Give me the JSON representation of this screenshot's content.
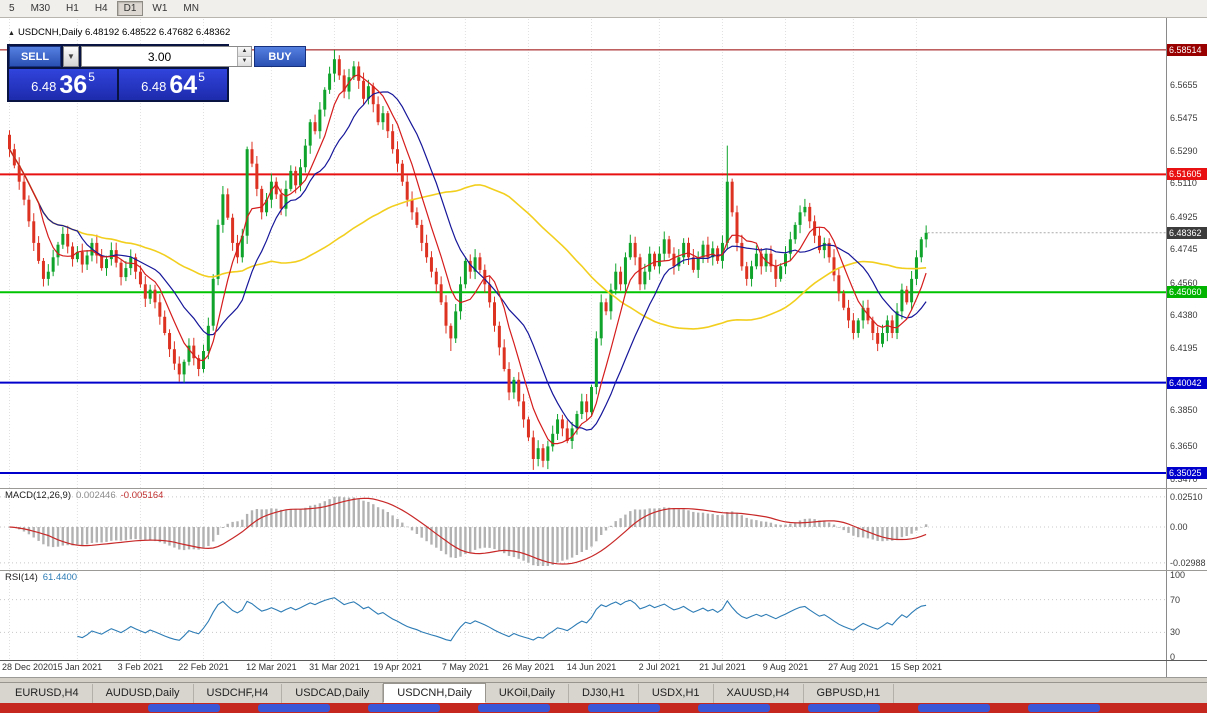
{
  "toolbar": {
    "timeframes": [
      {
        "label": "5",
        "active": false
      },
      {
        "label": "M30",
        "active": false
      },
      {
        "label": "H1",
        "active": false
      },
      {
        "label": "H4",
        "active": false
      },
      {
        "label": "D1",
        "active": true
      },
      {
        "label": "W1",
        "active": false
      },
      {
        "label": "MN",
        "active": false
      }
    ]
  },
  "chart_header": {
    "collapse_icon": "▲",
    "text": "USDCNH,Daily 6.48192 6.48522 6.47682 6.48362"
  },
  "trade_panel": {
    "sell_label": "SELL",
    "buy_label": "BUY",
    "volume": "3.00",
    "sell_price": {
      "prefix": "6.48",
      "big": "36",
      "sup": "5"
    },
    "buy_price": {
      "prefix": "6.48",
      "big": "64",
      "sup": "5"
    }
  },
  "price_axis": {
    "labels": [
      {
        "text": "6.5655",
        "value": 6.5655
      },
      {
        "text": "6.5475",
        "value": 6.5475
      },
      {
        "text": "6.5290",
        "value": 6.529
      },
      {
        "text": "6.5110",
        "value": 6.511
      },
      {
        "text": "6.4925",
        "value": 6.4925
      },
      {
        "text": "6.4745",
        "value": 6.4745
      },
      {
        "text": "6.4560",
        "value": 6.456
      },
      {
        "text": "6.4380",
        "value": 6.438
      },
      {
        "text": "6.4195",
        "value": 6.4195
      },
      {
        "text": "6.3850",
        "value": 6.385
      },
      {
        "text": "6.3650",
        "value": 6.365
      },
      {
        "text": "6.3470",
        "value": 6.347
      }
    ],
    "badges": [
      {
        "text": "6.58514",
        "value": 6.58514,
        "color": "#990000"
      },
      {
        "text": "6.51605",
        "value": 6.51605,
        "color": "#e81010"
      },
      {
        "text": "6.48362",
        "value": 6.48362,
        "color": "#3c3c3c"
      },
      {
        "text": "6.45060",
        "value": 6.4506,
        "color": "#00b400"
      },
      {
        "text": "6.40042",
        "value": 6.40042,
        "color": "#0000cc"
      },
      {
        "text": "6.35025",
        "value": 6.35025,
        "color": "#0000cc"
      }
    ]
  },
  "macd_panel": {
    "label": "MACD(12,26,9)",
    "value_main": "0.002446",
    "value_signal": "-0.005164",
    "axis": [
      {
        "text": "0.02510",
        "value": 0.0251
      },
      {
        "text": "0.00",
        "value": 0
      },
      {
        "text": "-0.02988",
        "value": -0.02988
      }
    ]
  },
  "rsi_panel": {
    "label": "RSI(14)",
    "value": "61.4400",
    "axis": [
      {
        "text": "100",
        "value": 100
      },
      {
        "text": "70",
        "value": 70
      },
      {
        "text": "30",
        "value": 30
      },
      {
        "text": "0",
        "value": 0
      }
    ],
    "levels": [
      70,
      30
    ]
  },
  "time_axis": {
    "dates": [
      {
        "label": "28 Dec 2020",
        "index": 0
      },
      {
        "label": "15 Jan 2021",
        "index": 14
      },
      {
        "label": "3 Feb 2021",
        "index": 27
      },
      {
        "label": "22 Feb 2021",
        "index": 40
      },
      {
        "label": "12 Mar 2021",
        "index": 54
      },
      {
        "label": "31 Mar 2021",
        "index": 67
      },
      {
        "label": "19 Apr 2021",
        "index": 80
      },
      {
        "label": "7 May 2021",
        "index": 94
      },
      {
        "label": "26 May 2021",
        "index": 107
      },
      {
        "label": "14 Jun 2021",
        "index": 120
      },
      {
        "label": "2 Jul 2021",
        "index": 134
      },
      {
        "label": "21 Jul 2021",
        "index": 147
      },
      {
        "label": "9 Aug 2021",
        "index": 160
      },
      {
        "label": "27 Aug 2021",
        "index": 174
      },
      {
        "label": "15 Sep 2021",
        "index": 187
      }
    ]
  },
  "tabs": [
    {
      "label": "EURUSD,H4",
      "active": false
    },
    {
      "label": "AUDUSD,Daily",
      "active": false
    },
    {
      "label": "USDCHF,H4",
      "active": false
    },
    {
      "label": "USDCAD,Daily",
      "active": false
    },
    {
      "label": "USDCNH,Daily",
      "active": true
    },
    {
      "label": "UKOil,Daily",
      "active": false
    },
    {
      "label": "DJ30,H1",
      "active": false
    },
    {
      "label": "USDX,H1",
      "active": false
    },
    {
      "label": "XAUUSD,H4",
      "active": false
    },
    {
      "label": "GBPUSD,H1",
      "active": false
    }
  ],
  "colors": {
    "up": "#0fa32b",
    "down": "#dd3222",
    "ma_fast": "#d51c1c",
    "ma_mid": "#16169a",
    "ma_slow": "#f2cf1f",
    "macd_hist": "#b2b2b2",
    "macd_signal": "#c82828",
    "rsi_line": "#2d7cb5",
    "grid": "#e0e0e0"
  },
  "chart_data": {
    "type": "candlestick",
    "symbol": "USDCNH",
    "timeframe": "Daily",
    "ohlc": {
      "open": 6.48192,
      "high": 6.48522,
      "low": 6.47682,
      "close": 6.48362
    },
    "bid": 6.48362,
    "first_open": 6.538,
    "closes": [
      6.53,
      6.521,
      6.512,
      6.502,
      6.49,
      6.478,
      6.468,
      6.458,
      6.462,
      6.47,
      6.477,
      6.483,
      6.476,
      6.469,
      6.473,
      6.466,
      6.471,
      6.478,
      6.471,
      6.464,
      6.469,
      6.474,
      6.467,
      6.459,
      6.464,
      6.47,
      6.462,
      6.455,
      6.447,
      6.452,
      6.445,
      6.437,
      6.428,
      6.419,
      6.411,
      6.405,
      6.412,
      6.421,
      6.414,
      6.408,
      6.418,
      6.432,
      6.458,
      6.488,
      6.505,
      6.492,
      6.478,
      6.47,
      6.482,
      6.53,
      6.522,
      6.508,
      6.495,
      6.502,
      6.512,
      6.505,
      6.497,
      6.508,
      6.518,
      6.51,
      6.52,
      6.532,
      6.545,
      6.54,
      6.552,
      6.563,
      6.572,
      6.58,
      6.571,
      6.562,
      6.57,
      6.576,
      6.568,
      6.558,
      6.565,
      6.555,
      6.545,
      6.55,
      6.54,
      6.53,
      6.522,
      6.512,
      6.502,
      6.495,
      6.488,
      6.478,
      6.47,
      6.462,
      6.455,
      6.445,
      6.432,
      6.425,
      6.44,
      6.455,
      6.468,
      6.462,
      6.47,
      6.463,
      6.455,
      6.445,
      6.432,
      6.42,
      6.408,
      6.395,
      6.402,
      6.39,
      6.38,
      6.37,
      6.358,
      6.364,
      6.357,
      6.365,
      6.372,
      6.38,
      6.375,
      6.368,
      6.375,
      6.383,
      6.39,
      6.384,
      6.398,
      6.425,
      6.445,
      6.44,
      6.452,
      6.462,
      6.455,
      6.47,
      6.478,
      6.47,
      6.455,
      6.462,
      6.472,
      6.465,
      6.472,
      6.48,
      6.472,
      6.465,
      6.47,
      6.478,
      6.47,
      6.463,
      6.47,
      6.477,
      6.47,
      6.475,
      6.468,
      6.478,
      6.512,
      6.495,
      6.478,
      6.465,
      6.458,
      6.465,
      6.472,
      6.465,
      6.472,
      6.465,
      6.458,
      6.465,
      6.472,
      6.48,
      6.488,
      6.495,
      6.498,
      6.49,
      6.482,
      6.474,
      6.478,
      6.47,
      6.46,
      6.45,
      6.442,
      6.435,
      6.428,
      6.435,
      6.442,
      6.435,
      6.428,
      6.422,
      6.428,
      6.435,
      6.428,
      6.44,
      6.452,
      6.445,
      6.458,
      6.47,
      6.48,
      6.4836
    ],
    "wick_overrides": {
      "35": {
        "low": 6.401
      },
      "67": {
        "high": 6.5851
      },
      "91": {
        "low": 6.418
      },
      "108": {
        "low": 6.352
      },
      "110": {
        "low": 6.3535
      },
      "148": {
        "high": 6.532
      }
    },
    "levels": [
      {
        "price": 6.58514,
        "color": "#990000",
        "width": 1
      },
      {
        "price": 6.51605,
        "color": "#e81010",
        "width": 2
      },
      {
        "price": 6.4506,
        "color": "#00c400",
        "width": 2
      },
      {
        "price": 6.40042,
        "color": "#0000cc",
        "width": 2
      },
      {
        "price": 6.35025,
        "color": "#0000cc",
        "width": 2
      }
    ],
    "moving_averages": [
      {
        "period": 7,
        "color_key": "ma_fast"
      },
      {
        "period": 15,
        "color_key": "ma_mid"
      },
      {
        "period": 55,
        "color_key": "ma_slow"
      }
    ],
    "indicators": [
      {
        "name": "MACD",
        "params": [
          12,
          26,
          9
        ]
      },
      {
        "name": "RSI",
        "params": [
          14
        ]
      }
    ]
  }
}
